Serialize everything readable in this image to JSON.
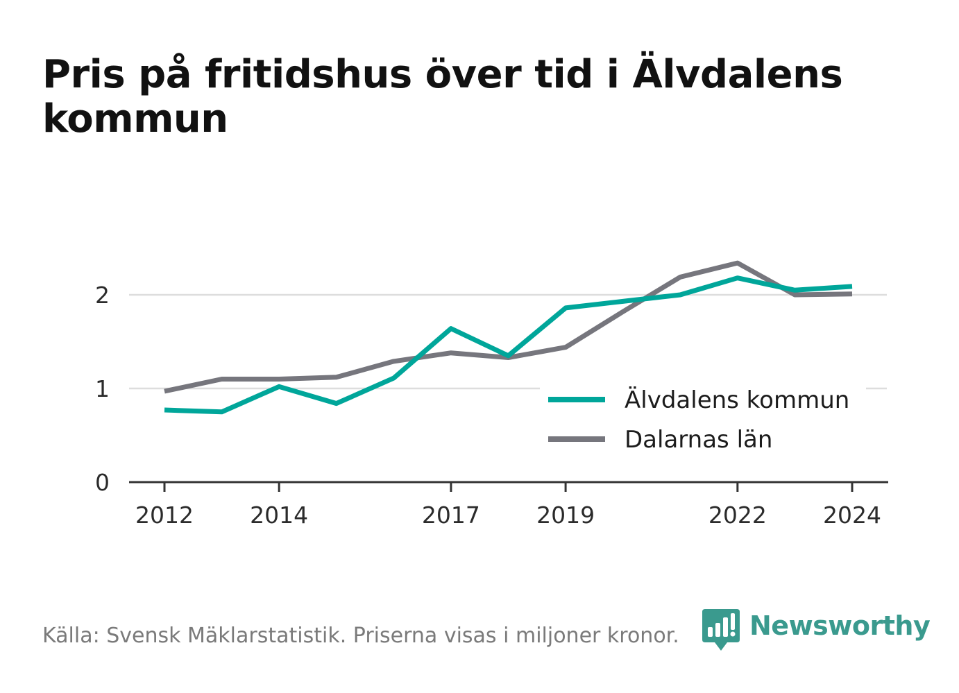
{
  "title": "Pris på fritidshus över tid i Älvdalens kommun",
  "source": "Källa: Svensk Mäklarstatistik. Priserna visas i miljoner kronor.",
  "brand": {
    "name": "Newsworthy",
    "icon": "newsworthy-logo-icon",
    "color": "#3a9a8e"
  },
  "chart_data": {
    "type": "line",
    "title": "Pris på fritidshus över tid i Älvdalens kommun",
    "xlabel": "",
    "ylabel": "",
    "x": [
      2012,
      2013,
      2014,
      2015,
      2016,
      2017,
      2018,
      2019,
      2020,
      2021,
      2022,
      2023,
      2024
    ],
    "x_ticks": [
      "2012",
      "2014",
      "2017",
      "2019",
      "2022",
      "2024"
    ],
    "y_ticks": [
      "0",
      "1",
      "2"
    ],
    "ylim": [
      0,
      2.5
    ],
    "grid": "horizontal",
    "legend_position": "right",
    "series": [
      {
        "name": "Älvdalens kommun",
        "color": "#00a69a",
        "values": [
          0.77,
          0.75,
          1.02,
          0.84,
          1.11,
          1.64,
          1.35,
          1.86,
          1.93,
          2.0,
          2.18,
          2.05,
          2.09
        ]
      },
      {
        "name": "Dalarnas län",
        "color": "#76767d",
        "values": [
          0.97,
          1.1,
          1.1,
          1.12,
          1.29,
          1.38,
          1.33,
          1.44,
          1.82,
          2.19,
          2.34,
          2.0,
          2.01
        ]
      }
    ]
  }
}
